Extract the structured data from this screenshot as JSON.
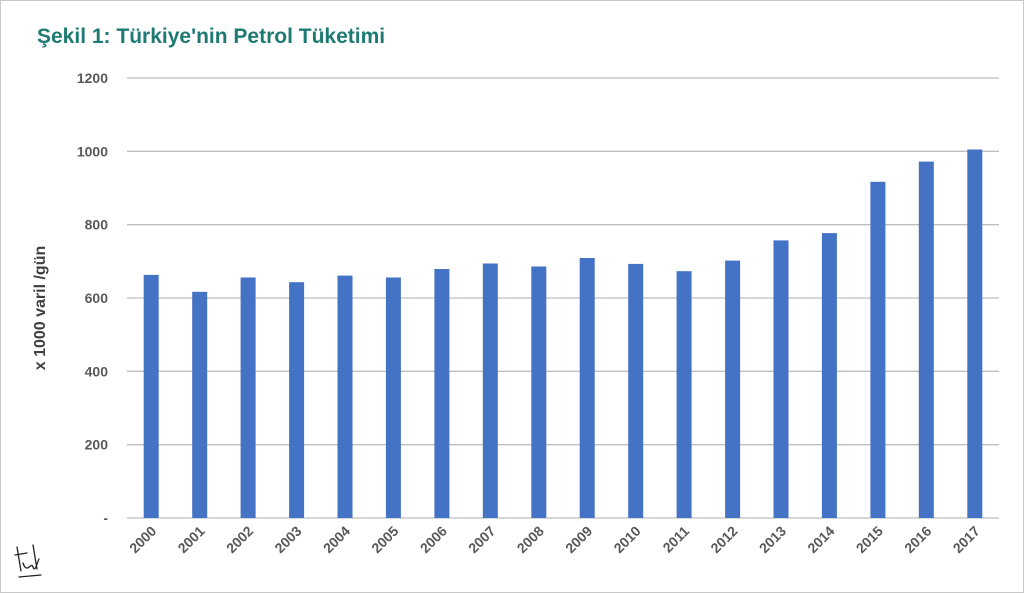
{
  "chart_data": {
    "type": "bar",
    "title": "Şekil 1: Türkiye'nin Petrol Tüketimi",
    "xlabel": "",
    "ylabel": "x 1000 varil /gün",
    "categories": [
      "2000",
      "2001",
      "2002",
      "2003",
      "2004",
      "2005",
      "2006",
      "2007",
      "2008",
      "2009",
      "2010",
      "2011",
      "2012",
      "2013",
      "2014",
      "2015",
      "2016",
      "2017"
    ],
    "values": [
      663,
      617,
      656,
      643,
      661,
      656,
      679,
      694,
      686,
      709,
      693,
      673,
      702,
      757,
      777,
      917,
      972,
      1005
    ],
    "ylim": [
      0,
      1200
    ],
    "yticks": [
      0,
      200,
      400,
      600,
      800,
      1000,
      1200
    ],
    "ytick_labels": [
      "-",
      "200",
      "400",
      "600",
      "800",
      "1000",
      "1200"
    ],
    "grid": true,
    "bar_color": "#4472c4",
    "grid_color": "#bfbfbf",
    "title_color": "#1f7a74"
  }
}
